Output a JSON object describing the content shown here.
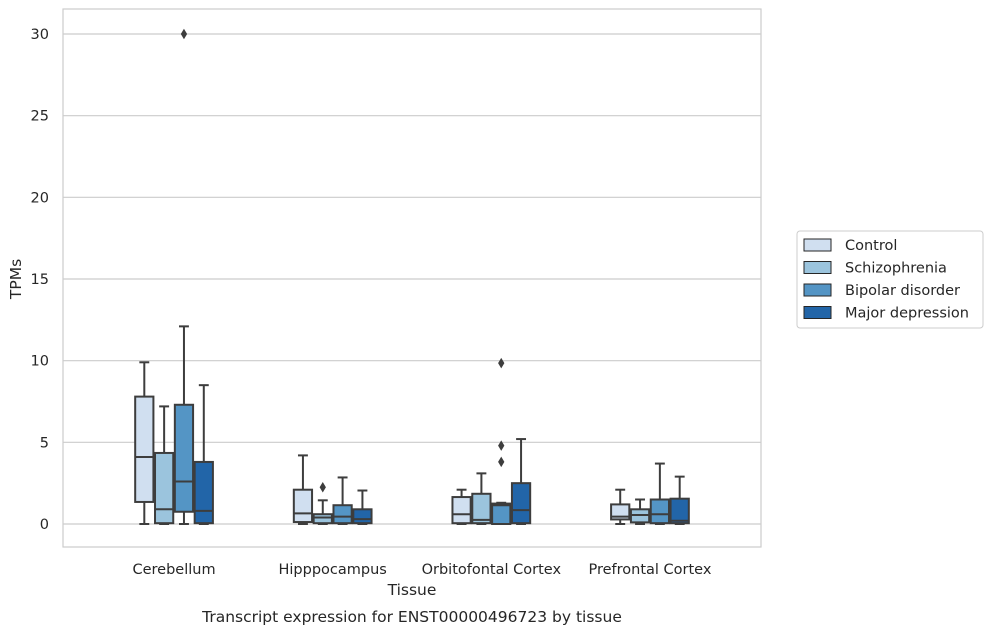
{
  "caption": "Transcript expression for ENST00000496723 by tissue",
  "chart_data": {
    "type": "box",
    "title": "",
    "xlabel": "Tissue",
    "ylabel": "TPMs",
    "ylim": [
      -1.4,
      31.6
    ],
    "yticks": [
      0,
      5,
      10,
      15,
      20,
      25,
      30
    ],
    "grid": "horizontal",
    "legend_position": "right",
    "categories": [
      "Cerebellum",
      "Hipppocampus",
      "Orbitofontal Cortex",
      "Prefrontal Cortex"
    ],
    "series": [
      {
        "name": "Control",
        "color": "#d0dff0",
        "boxes": [
          {
            "whislo": 0.0,
            "q1": 1.35,
            "med": 4.1,
            "q3": 7.8,
            "whishi": 9.9,
            "fliers": []
          },
          {
            "whislo": 0.0,
            "q1": 0.12,
            "med": 0.65,
            "q3": 2.1,
            "whishi": 4.2,
            "fliers": []
          },
          {
            "whislo": 0.0,
            "q1": 0.05,
            "med": 0.6,
            "q3": 1.65,
            "whishi": 2.1,
            "fliers": []
          },
          {
            "whislo": 0.0,
            "q1": 0.28,
            "med": 0.45,
            "q3": 1.2,
            "whishi": 2.1,
            "fliers": []
          }
        ]
      },
      {
        "name": "Schizophrenia",
        "color": "#9bc4dd",
        "boxes": [
          {
            "whislo": 0.0,
            "q1": 0.05,
            "med": 0.9,
            "q3": 4.35,
            "whishi": 7.2,
            "fliers": []
          },
          {
            "whislo": 0.0,
            "q1": 0.05,
            "med": 0.4,
            "q3": 0.6,
            "whishi": 1.45,
            "fliers": [
              2.25
            ]
          },
          {
            "whislo": 0.0,
            "q1": 0.05,
            "med": 0.25,
            "q3": 1.85,
            "whishi": 3.1,
            "fliers": []
          },
          {
            "whislo": 0.0,
            "q1": 0.1,
            "med": 0.55,
            "q3": 0.9,
            "whishi": 1.5,
            "fliers": []
          }
        ]
      },
      {
        "name": "Bipolar disorder",
        "color": "#5495c5",
        "boxes": [
          {
            "whislo": 0.0,
            "q1": 0.75,
            "med": 2.6,
            "q3": 7.3,
            "whishi": 12.1,
            "fliers": [
              30.0
            ]
          },
          {
            "whislo": 0.0,
            "q1": 0.05,
            "med": 0.45,
            "q3": 1.15,
            "whishi": 2.85,
            "fliers": []
          },
          {
            "whislo": 0.0,
            "q1": 0.0,
            "med": 1.15,
            "q3": 1.25,
            "whishi": 1.3,
            "fliers": [
              3.8,
              4.8,
              9.85
            ]
          },
          {
            "whislo": 0.0,
            "q1": 0.05,
            "med": 0.6,
            "q3": 1.5,
            "whishi": 3.7,
            "fliers": []
          }
        ]
      },
      {
        "name": "Major depression",
        "color": "#2265a8",
        "boxes": [
          {
            "whislo": 0.0,
            "q1": 0.05,
            "med": 0.8,
            "q3": 3.8,
            "whishi": 8.5,
            "fliers": []
          },
          {
            "whislo": 0.0,
            "q1": 0.05,
            "med": 0.3,
            "q3": 0.9,
            "whishi": 2.05,
            "fliers": []
          },
          {
            "whislo": 0.0,
            "q1": 0.05,
            "med": 0.85,
            "q3": 2.5,
            "whishi": 5.2,
            "fliers": []
          },
          {
            "whislo": 0.0,
            "q1": 0.05,
            "med": 0.2,
            "q3": 1.55,
            "whishi": 2.9,
            "fliers": []
          }
        ]
      }
    ]
  }
}
